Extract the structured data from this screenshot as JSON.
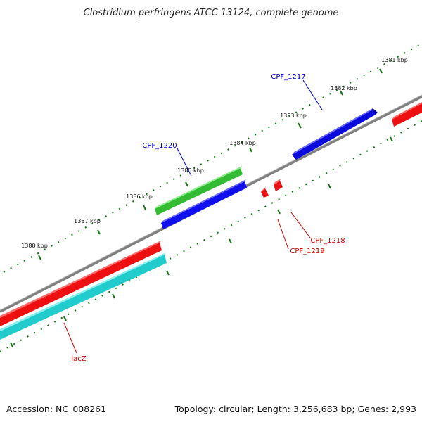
{
  "title": "Clostridium perfringens ATCC 13124, complete genome",
  "footer": {
    "accession": "Accession: NC_008261",
    "topology": "Topology: circular; Length: 3,256,683 bp; Genes: 2,993"
  },
  "ticks": [
    "1381 kbp",
    "1382 kbp",
    "1383 kbp",
    "1384 kbp",
    "1385 kbp",
    "1386 kbp",
    "1387 kbp",
    "1388 kbp"
  ],
  "genes": [
    {
      "label": "CPF_1217",
      "color": "#0000cc"
    },
    {
      "label": "CPF_1220",
      "color": "#0000cc"
    },
    {
      "label": "CPF_1218",
      "color": "#cc0000"
    },
    {
      "label": "CPF_1219",
      "color": "#cc0000"
    },
    {
      "label": "lacZ",
      "color": "#cc0000"
    }
  ],
  "colors": {
    "backbone": "#808080",
    "forward_gene": "#1010ee",
    "reverse_gene": "#ee1010",
    "rna_gene": "#33bb33",
    "cds_track": "#22cccc",
    "tick": "#117711"
  }
}
